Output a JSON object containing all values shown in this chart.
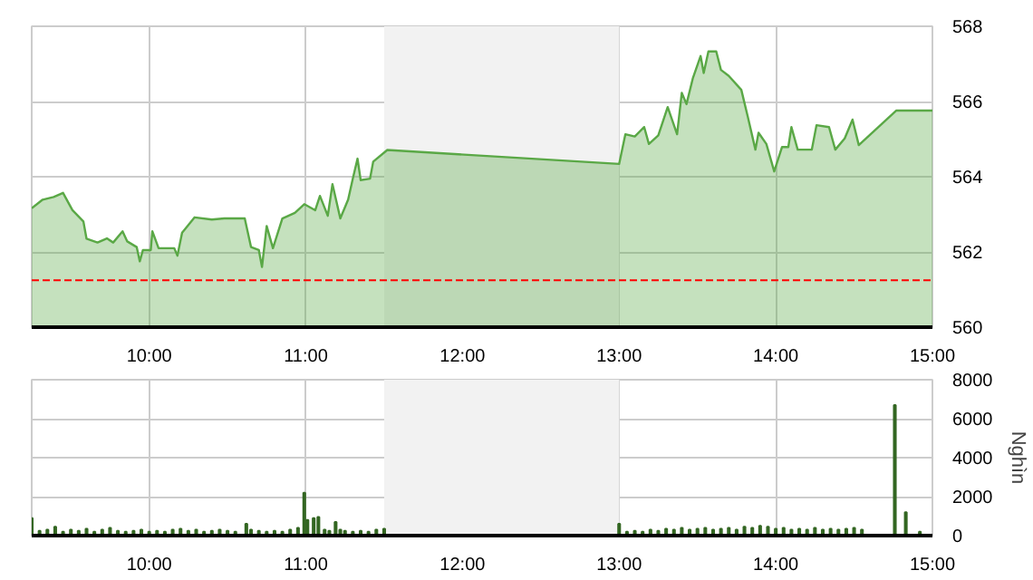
{
  "chart_data": [
    {
      "type": "area",
      "xlim": [
        9.25,
        15
      ],
      "ylim": [
        560,
        568
      ],
      "yticks": [
        560,
        562,
        564,
        566,
        568
      ],
      "grid": true,
      "xticks": [
        {
          "value": 10,
          "label": "10:00"
        },
        {
          "value": 11,
          "label": "11:00"
        },
        {
          "value": 12,
          "label": "12:00"
        },
        {
          "value": 13,
          "label": "13:00"
        },
        {
          "value": 14,
          "label": "14:00"
        },
        {
          "value": 15,
          "label": "15:00"
        }
      ],
      "bands": [
        {
          "axis": "x",
          "from": 11.5,
          "to": 13,
          "color": "#f2f2f2"
        }
      ],
      "ref_lines": [
        {
          "axis": "y",
          "value": 561.25,
          "color": "#ff0000",
          "line_style": "dashed"
        }
      ],
      "series": [
        {
          "color": "#5aa846",
          "x": [
            9.25,
            9.32,
            9.39,
            9.45,
            9.51,
            9.58,
            9.6,
            9.67,
            9.73,
            9.77,
            9.83,
            9.86,
            9.92,
            9.94,
            9.96,
            10.01,
            10.02,
            10.06,
            10.16,
            10.18,
            10.21,
            10.29,
            10.4,
            10.48,
            10.61,
            10.65,
            10.7,
            10.72,
            10.75,
            10.79,
            10.85,
            10.93,
            10.99,
            11.06,
            11.09,
            11.14,
            11.17,
            11.22,
            11.27,
            11.3,
            11.33,
            11.35,
            11.41,
            11.43,
            11.52,
            13.0,
            13.04,
            13.1,
            13.16,
            13.19,
            13.25,
            13.31,
            13.37,
            13.4,
            13.43,
            13.47,
            13.52,
            13.54,
            13.57,
            13.62,
            13.65,
            13.7,
            13.78,
            13.82,
            13.87,
            13.89,
            13.94,
            13.99,
            14.04,
            14.08,
            14.1,
            14.14,
            14.23,
            14.26,
            14.34,
            14.38,
            14.44,
            14.49,
            14.53,
            14.77,
            15.0
          ],
          "values": [
            563.16,
            563.39,
            563.46,
            563.57,
            563.11,
            562.81,
            562.35,
            562.25,
            562.36,
            562.25,
            562.55,
            562.28,
            562.13,
            561.75,
            562.05,
            562.05,
            562.55,
            562.1,
            562.1,
            561.9,
            562.51,
            562.92,
            562.86,
            562.89,
            562.89,
            562.13,
            562.05,
            561.6,
            562.69,
            562.1,
            562.89,
            563.04,
            563.27,
            563.11,
            563.49,
            562.96,
            563.8,
            562.89,
            563.39,
            563.95,
            564.48,
            563.91,
            563.95,
            564.4,
            564.71,
            564.34,
            565.13,
            565.07,
            565.32,
            564.87,
            565.1,
            565.85,
            565.13,
            566.23,
            565.93,
            566.61,
            567.21,
            566.76,
            567.33,
            567.33,
            566.84,
            566.68,
            566.31,
            565.62,
            564.72,
            565.17,
            564.87,
            564.14,
            564.79,
            564.79,
            565.32,
            564.72,
            564.72,
            565.37,
            565.32,
            564.72,
            565.02,
            565.52,
            564.84,
            565.76,
            565.76
          ]
        }
      ]
    },
    {
      "type": "bar",
      "xlim": [
        9.25,
        15
      ],
      "ylim": [
        0,
        8000
      ],
      "yticks": [
        0,
        2000,
        4000,
        6000,
        8000
      ],
      "grid": true,
      "y2label": "Nghìn",
      "xticks": [
        {
          "value": 10,
          "label": "10:00"
        },
        {
          "value": 11,
          "label": "11:00"
        },
        {
          "value": 12,
          "label": "12:00"
        },
        {
          "value": 13,
          "label": "13:00"
        },
        {
          "value": 14,
          "label": "14:00"
        },
        {
          "value": 15,
          "label": "15:00"
        }
      ],
      "bands": [
        {
          "axis": "x",
          "from": 11.5,
          "to": 13,
          "color": "#f2f2f2"
        }
      ],
      "series": [
        {
          "color": "#336622",
          "x": [
            9.25,
            9.3,
            9.35,
            9.4,
            9.45,
            9.5,
            9.55,
            9.6,
            9.65,
            9.7,
            9.75,
            9.8,
            9.85,
            9.9,
            9.95,
            10.0,
            10.05,
            10.1,
            10.15,
            10.2,
            10.25,
            10.3,
            10.35,
            10.4,
            10.45,
            10.5,
            10.55,
            10.62,
            10.65,
            10.7,
            10.75,
            10.8,
            10.85,
            10.9,
            10.95,
            10.99,
            11.01,
            11.05,
            11.08,
            11.12,
            11.15,
            11.19,
            11.22,
            11.25,
            11.3,
            11.35,
            11.4,
            11.45,
            11.5,
            13.0,
            13.05,
            13.1,
            13.15,
            13.2,
            13.25,
            13.3,
            13.35,
            13.4,
            13.45,
            13.5,
            13.55,
            13.6,
            13.65,
            13.7,
            13.75,
            13.8,
            13.85,
            13.9,
            13.95,
            14.0,
            14.05,
            14.1,
            14.15,
            14.2,
            14.25,
            14.3,
            14.35,
            14.4,
            14.45,
            14.5,
            14.55,
            14.76,
            14.83,
            14.92
          ],
          "values": [
            900,
            250,
            300,
            450,
            200,
            300,
            250,
            350,
            200,
            300,
            400,
            250,
            200,
            250,
            300,
            200,
            250,
            200,
            300,
            350,
            250,
            300,
            200,
            250,
            300,
            250,
            200,
            600,
            300,
            250,
            200,
            250,
            200,
            300,
            400,
            2200,
            800,
            900,
            950,
            300,
            250,
            700,
            300,
            250,
            200,
            250,
            200,
            300,
            350,
            600,
            200,
            250,
            200,
            300,
            250,
            350,
            300,
            400,
            300,
            350,
            400,
            300,
            350,
            400,
            300,
            450,
            400,
            500,
            450,
            350,
            400,
            300,
            350,
            300,
            400,
            300,
            350,
            300,
            350,
            400,
            300,
            6700,
            1200,
            200
          ]
        }
      ]
    }
  ]
}
